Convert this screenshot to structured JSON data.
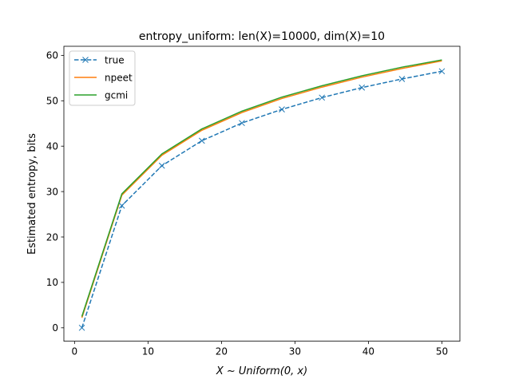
{
  "chart_data": {
    "type": "line",
    "title": "entropy_uniform: len(X)=10000, dim(X)=10",
    "xlabel": "X ~ Uniform(0, x)",
    "ylabel": "Estimated entropy, bits",
    "xlim": [
      -1.45,
      52.45
    ],
    "ylim": [
      -2.95,
      62.0
    ],
    "x_ticks": [
      0,
      10,
      20,
      30,
      40,
      50
    ],
    "x_tick_labels": [
      "0",
      "10",
      "20",
      "30",
      "40",
      "50"
    ],
    "y_ticks": [
      0,
      10,
      20,
      30,
      40,
      50,
      60
    ],
    "y_tick_labels": [
      "0",
      "10",
      "20",
      "30",
      "40",
      "50",
      "60"
    ],
    "grid": false,
    "legend_position": "top-left",
    "x": [
      1,
      6.44,
      11.89,
      17.33,
      22.78,
      28.22,
      33.67,
      39.11,
      44.56,
      50
    ],
    "series": [
      {
        "name": "true",
        "color": "#1f77b4",
        "style": "dashed",
        "marker": "x",
        "values": [
          0.0,
          26.9,
          35.7,
          41.2,
          45.1,
          48.1,
          50.7,
          52.9,
          54.8,
          56.5
        ]
      },
      {
        "name": "npeet",
        "color": "#ff7f0e",
        "style": "solid",
        "marker": "none",
        "values": [
          2.2,
          29.2,
          38.0,
          43.5,
          47.4,
          50.5,
          53.0,
          55.2,
          57.1,
          58.8
        ]
      },
      {
        "name": "gcmi",
        "color": "#2ca02c",
        "style": "solid",
        "marker": "none",
        "values": [
          2.5,
          29.5,
          38.3,
          43.8,
          47.7,
          50.8,
          53.3,
          55.5,
          57.4,
          59.0
        ]
      }
    ]
  }
}
